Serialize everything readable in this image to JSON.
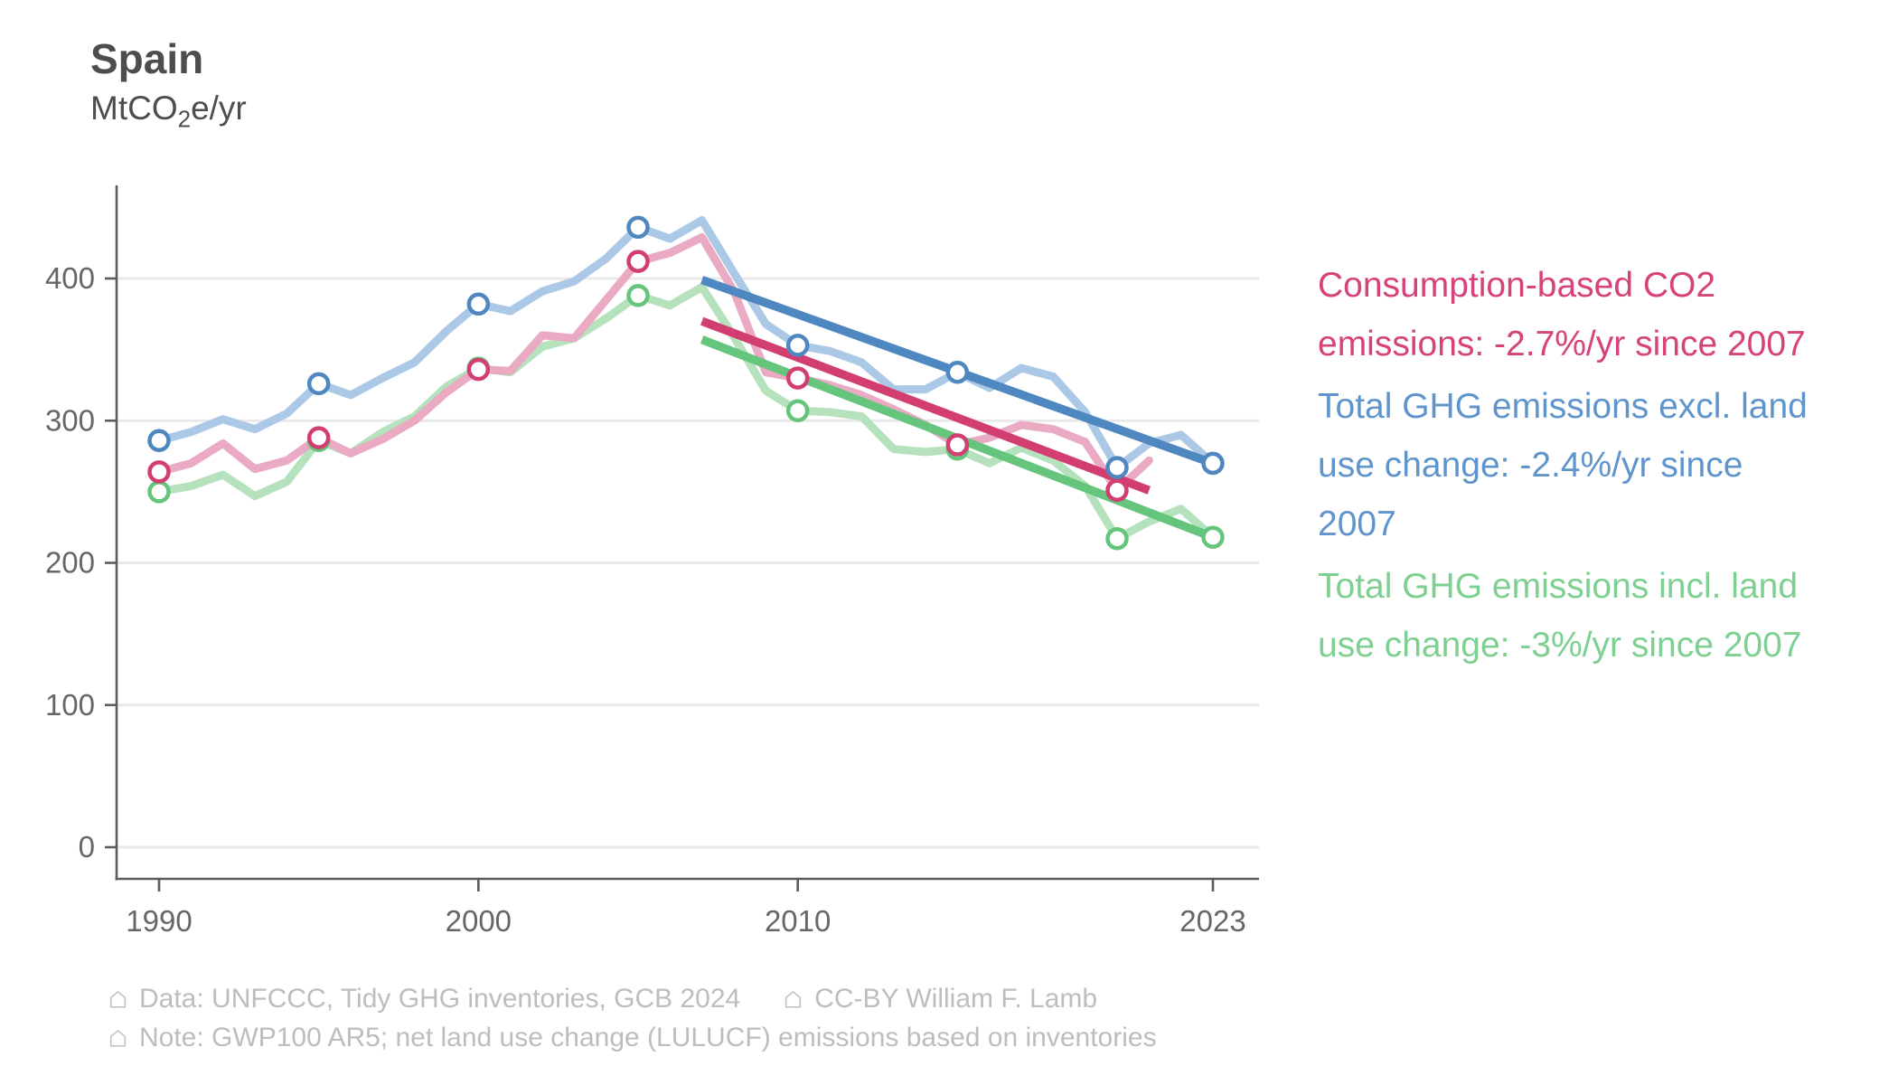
{
  "header": {
    "title": "Spain",
    "subtitle_prefix": "MtCO",
    "subtitle_sub": "2",
    "subtitle_suffix": "e/yr"
  },
  "legend": {
    "items": [
      {
        "key": "consumption-co2",
        "color": "#d64279",
        "lines": [
          "Consumption-based CO2",
          "emissions: -2.7%/yr since 2007"
        ]
      },
      {
        "key": "ghg-excl-lulucf",
        "color": "#6094cc",
        "lines": [
          "Total GHG emissions excl. land",
          "use change: -2.4%/yr since",
          "2007"
        ]
      },
      {
        "key": "ghg-incl-lulucf",
        "color": "#7ed092",
        "lines": [
          "Total GHG emissions incl. land",
          "use change: -3%/yr since 2007"
        ]
      }
    ]
  },
  "footer": {
    "line1": [
      {
        "icon": "house-icon",
        "text": "Data: UNFCCC, Tidy GHG inventories, GCB 2024"
      },
      {
        "icon": "house-icon",
        "text": "CC-BY William F. Lamb"
      }
    ],
    "line2": [
      {
        "icon": "house-icon",
        "text": "Note: GWP100 AR5; net land use change (LULUCF) emissions based on inventories"
      }
    ]
  },
  "chart_data": {
    "type": "line",
    "title": "Spain",
    "ylabel": "MtCO2e/yr",
    "xlim": [
      1988.7,
      2024.5
    ],
    "ylim": [
      0,
      460
    ],
    "grid": "horizontal-major-100",
    "legend_position": "right",
    "axes": {
      "x": {
        "ticks": [
          {
            "year": 1990,
            "label": "1990"
          },
          {
            "year": 2000,
            "label": "2000"
          },
          {
            "year": 2010,
            "label": "2010"
          },
          {
            "year": 2023,
            "label": "2023"
          }
        ]
      },
      "y": {
        "ticks": [
          {
            "value": 0,
            "label": "0"
          },
          {
            "value": 100,
            "label": "100"
          },
          {
            "value": 200,
            "label": "200"
          },
          {
            "value": 300,
            "label": "300"
          },
          {
            "value": 400,
            "label": "400"
          }
        ]
      }
    },
    "series": [
      {
        "key": "ghg-incl-lulucf",
        "name": "Total GHG emissions incl. land use change",
        "color": "#65c57c",
        "color_light": "#b5e2bd",
        "start_year": 1990,
        "values": [
          250,
          254,
          262,
          247,
          257,
          286,
          277,
          292,
          303,
          324,
          337,
          334,
          352,
          358,
          372,
          388,
          381,
          394,
          359,
          321,
          307,
          306,
          303,
          280,
          278,
          280,
          270,
          281,
          272,
          254,
          217,
          229,
          238,
          218
        ],
        "marker_years": [
          1990,
          1995,
          2000,
          2005,
          2010,
          2015,
          2020,
          2023
        ]
      },
      {
        "key": "consumption-co2",
        "name": "Consumption-based CO2 emissions",
        "color": "#d23d72",
        "color_light": "#eaaac4",
        "start_year": 1990,
        "values": [
          264,
          270,
          284,
          266,
          272,
          288,
          277,
          287,
          300,
          320,
          336,
          335,
          360,
          358,
          385,
          412,
          418,
          429,
          391,
          334,
          330,
          325,
          318,
          308,
          297,
          283,
          288,
          297,
          294,
          285,
          251,
          272
        ],
        "marker_years": [
          1990,
          1995,
          2000,
          2005,
          2010,
          2015,
          2020
        ]
      },
      {
        "key": "ghg-excl-lulucf",
        "name": "Total GHG emissions excl. land use change",
        "color": "#4f87c0",
        "color_light": "#abc9e6",
        "start_year": 1990,
        "values": [
          286,
          292,
          301,
          294,
          305,
          326,
          318,
          330,
          341,
          363,
          382,
          377,
          391,
          398,
          414,
          436,
          428,
          441,
          404,
          368,
          353,
          349,
          341,
          322,
          322,
          334,
          323,
          337,
          331,
          306,
          267,
          284,
          290,
          270
        ],
        "marker_years": [
          1990,
          1995,
          2000,
          2005,
          2010,
          2015,
          2020,
          2023
        ]
      }
    ],
    "trends": [
      {
        "key": "ghg-incl-lulucf",
        "label": "-3%/yr since 2007",
        "color": "#65c57c",
        "from_year": 2007,
        "from_value": 357,
        "to_year": 2023,
        "to_value": 218
      },
      {
        "key": "consumption-co2",
        "label": "-2.7%/yr since 2007",
        "color": "#d23d72",
        "from_year": 2007,
        "from_value": 370,
        "to_year": 2021,
        "to_value": 251
      },
      {
        "key": "ghg-excl-lulucf",
        "label": "-2.4%/yr since 2007",
        "color": "#4f87c0",
        "from_year": 2007,
        "from_value": 399,
        "to_year": 2023,
        "to_value": 270
      }
    ],
    "style": {
      "grid_color": "#e9e9e9",
      "axis_color": "#5c5c5c",
      "tick_label_color": "#666666",
      "line_width": 9,
      "trend_width": 9.5,
      "marker_radius": 10.5,
      "marker_stroke": 4.5
    }
  }
}
